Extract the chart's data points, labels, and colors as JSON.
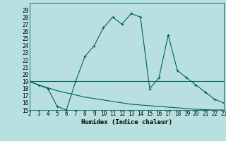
{
  "x": [
    2,
    3,
    4,
    5,
    6,
    7,
    8,
    9,
    10,
    11,
    12,
    13,
    14,
    15,
    16,
    17,
    18,
    19,
    20,
    21,
    22,
    23
  ],
  "line1": [
    19,
    18.5,
    18,
    15.5,
    15,
    19,
    22.5,
    24,
    26.5,
    28,
    27,
    28.5,
    28,
    18,
    19.5,
    25.5,
    20.5,
    19.5,
    18.5,
    17.5,
    16.5,
    16
  ],
  "line2": [
    19,
    19,
    19,
    19,
    19,
    19,
    19,
    19,
    19,
    19,
    19,
    19,
    19,
    19,
    19,
    19,
    19,
    19,
    19,
    19,
    19,
    19
  ],
  "line3": [
    19,
    18.5,
    18.1,
    17.7,
    17.4,
    17.1,
    16.8,
    16.6,
    16.4,
    16.2,
    16.0,
    15.8,
    15.7,
    15.6,
    15.5,
    15.4,
    15.3,
    15.2,
    15.1,
    15.05,
    15.0,
    15.0
  ],
  "line_color": "#006060",
  "bg_color": "#b8e0e0",
  "grid_minor_color": "#c8d8d8",
  "grid_major_color": "#a0c8c8",
  "xlabel": "Humidex (Indice chaleur)",
  "ylim": [
    15,
    30
  ],
  "xlim": [
    2,
    23
  ],
  "yticks": [
    15,
    16,
    17,
    18,
    19,
    20,
    21,
    22,
    23,
    24,
    25,
    26,
    27,
    28,
    29
  ],
  "xticks": [
    2,
    3,
    4,
    5,
    6,
    7,
    8,
    9,
    10,
    11,
    12,
    13,
    14,
    15,
    16,
    17,
    18,
    19,
    20,
    21,
    22,
    23
  ],
  "tick_fontsize": 5.5,
  "xlabel_fontsize": 6.5
}
